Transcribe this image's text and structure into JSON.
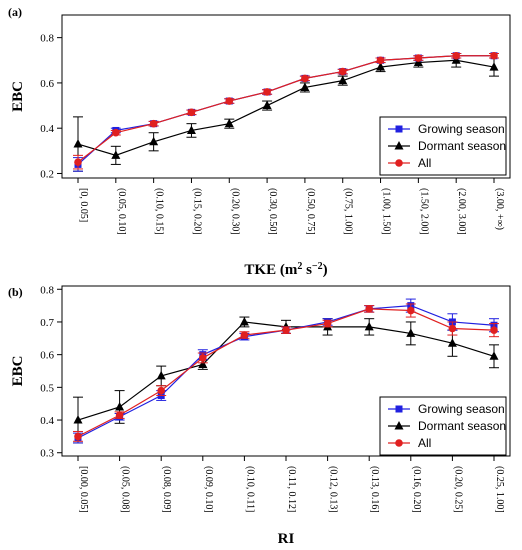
{
  "chart_data": [
    {
      "type": "line",
      "panel_label": "(a)",
      "ylabel": "EBC",
      "xlabel_main": "TKE (m",
      "xlabel_sup1": "2",
      "xlabel_mid": " s",
      "xlabel_sup2": "−2",
      "xlabel_end": ")",
      "ylim": [
        0.18,
        0.9
      ],
      "yticks": [
        "0.2",
        "0.4",
        "0.6",
        "0.8"
      ],
      "ytick_values": [
        0.2,
        0.4,
        0.6,
        0.8
      ],
      "categories": [
        "[0, 0.05]",
        "(0.05, 0.10]",
        "(0.10, 0.15]",
        "(0.15, 0.20]",
        "(0.20, 0.30]",
        "(0.30, 0.50]",
        "(0.50, 0.75]",
        "(0.75, 1.00]",
        "(1.00, 1.50]",
        "(1.50, 2.00]",
        "(2.00, 3.00]",
        "(3.00, +∞)"
      ],
      "legend_position": "bottom-right",
      "series": [
        {
          "name": "Growing season",
          "color": "#2020e0",
          "marker": "square",
          "values": [
            0.24,
            0.39,
            0.42,
            0.47,
            0.52,
            0.56,
            0.62,
            0.65,
            0.7,
            0.71,
            0.72,
            0.72
          ],
          "err": [
            0.03,
            0.01,
            0.01,
            0.01,
            0.01,
            0.01,
            0.01,
            0.01,
            0.01,
            0.01,
            0.01,
            0.01
          ]
        },
        {
          "name": "Dormant season",
          "color": "#000000",
          "marker": "triangle",
          "values": [
            0.33,
            0.28,
            0.34,
            0.39,
            0.42,
            0.5,
            0.58,
            0.61,
            0.67,
            0.69,
            0.7,
            0.67
          ],
          "err": [
            0.12,
            0.04,
            0.04,
            0.03,
            0.02,
            0.02,
            0.02,
            0.02,
            0.02,
            0.02,
            0.03,
            0.04
          ]
        },
        {
          "name": "All",
          "color": "#e02020",
          "marker": "circle",
          "values": [
            0.25,
            0.38,
            0.42,
            0.47,
            0.52,
            0.56,
            0.62,
            0.65,
            0.7,
            0.71,
            0.72,
            0.72
          ],
          "err": [
            0.03,
            0.01,
            0.01,
            0.01,
            0.01,
            0.01,
            0.01,
            0.01,
            0.01,
            0.01,
            0.01,
            0.01
          ]
        }
      ]
    },
    {
      "type": "line",
      "panel_label": "(b)",
      "ylabel": "EBC",
      "xlabel_main": "RI",
      "ylim": [
        0.29,
        0.81
      ],
      "yticks": [
        "0.3",
        "0.4",
        "0.5",
        "0.6",
        "0.7",
        "0.8"
      ],
      "ytick_values": [
        0.3,
        0.4,
        0.5,
        0.6,
        0.7,
        0.8
      ],
      "categories": [
        "[0.00, 0.05]",
        "(0.05, 0.08]",
        "(0.08, 0.09]",
        "(0.09, 0.10]",
        "(0.10, 0.11]",
        "(0.11, 0.12]",
        "(0.12, 0.13]",
        "(0.13, 0.16]",
        "(0.16, 0.20]",
        "(0.20, 0.25]",
        "(0.25, 1.00]"
      ],
      "legend_position": "bottom-right",
      "series": [
        {
          "name": "Growing season",
          "color": "#2020e0",
          "marker": "square",
          "values": [
            0.345,
            0.41,
            0.475,
            0.6,
            0.655,
            0.675,
            0.7,
            0.74,
            0.75,
            0.7,
            0.69
          ],
          "err": [
            0.015,
            0.01,
            0.015,
            0.015,
            0.01,
            0.01,
            0.01,
            0.01,
            0.02,
            0.025,
            0.02
          ]
        },
        {
          "name": "Dormant season",
          "color": "#000000",
          "marker": "triangle",
          "values": [
            0.4,
            0.44,
            0.535,
            0.57,
            0.7,
            0.685,
            0.685,
            0.685,
            0.665,
            0.635,
            0.595
          ],
          "err": [
            0.07,
            0.05,
            0.03,
            0.015,
            0.015,
            0.02,
            0.025,
            0.025,
            0.035,
            0.04,
            0.035
          ]
        },
        {
          "name": "All",
          "color": "#e02020",
          "marker": "circle",
          "values": [
            0.35,
            0.415,
            0.49,
            0.59,
            0.66,
            0.675,
            0.695,
            0.74,
            0.735,
            0.68,
            0.675
          ],
          "err": [
            0.015,
            0.01,
            0.015,
            0.015,
            0.01,
            0.01,
            0.01,
            0.01,
            0.02,
            0.02,
            0.02
          ]
        }
      ]
    }
  ]
}
